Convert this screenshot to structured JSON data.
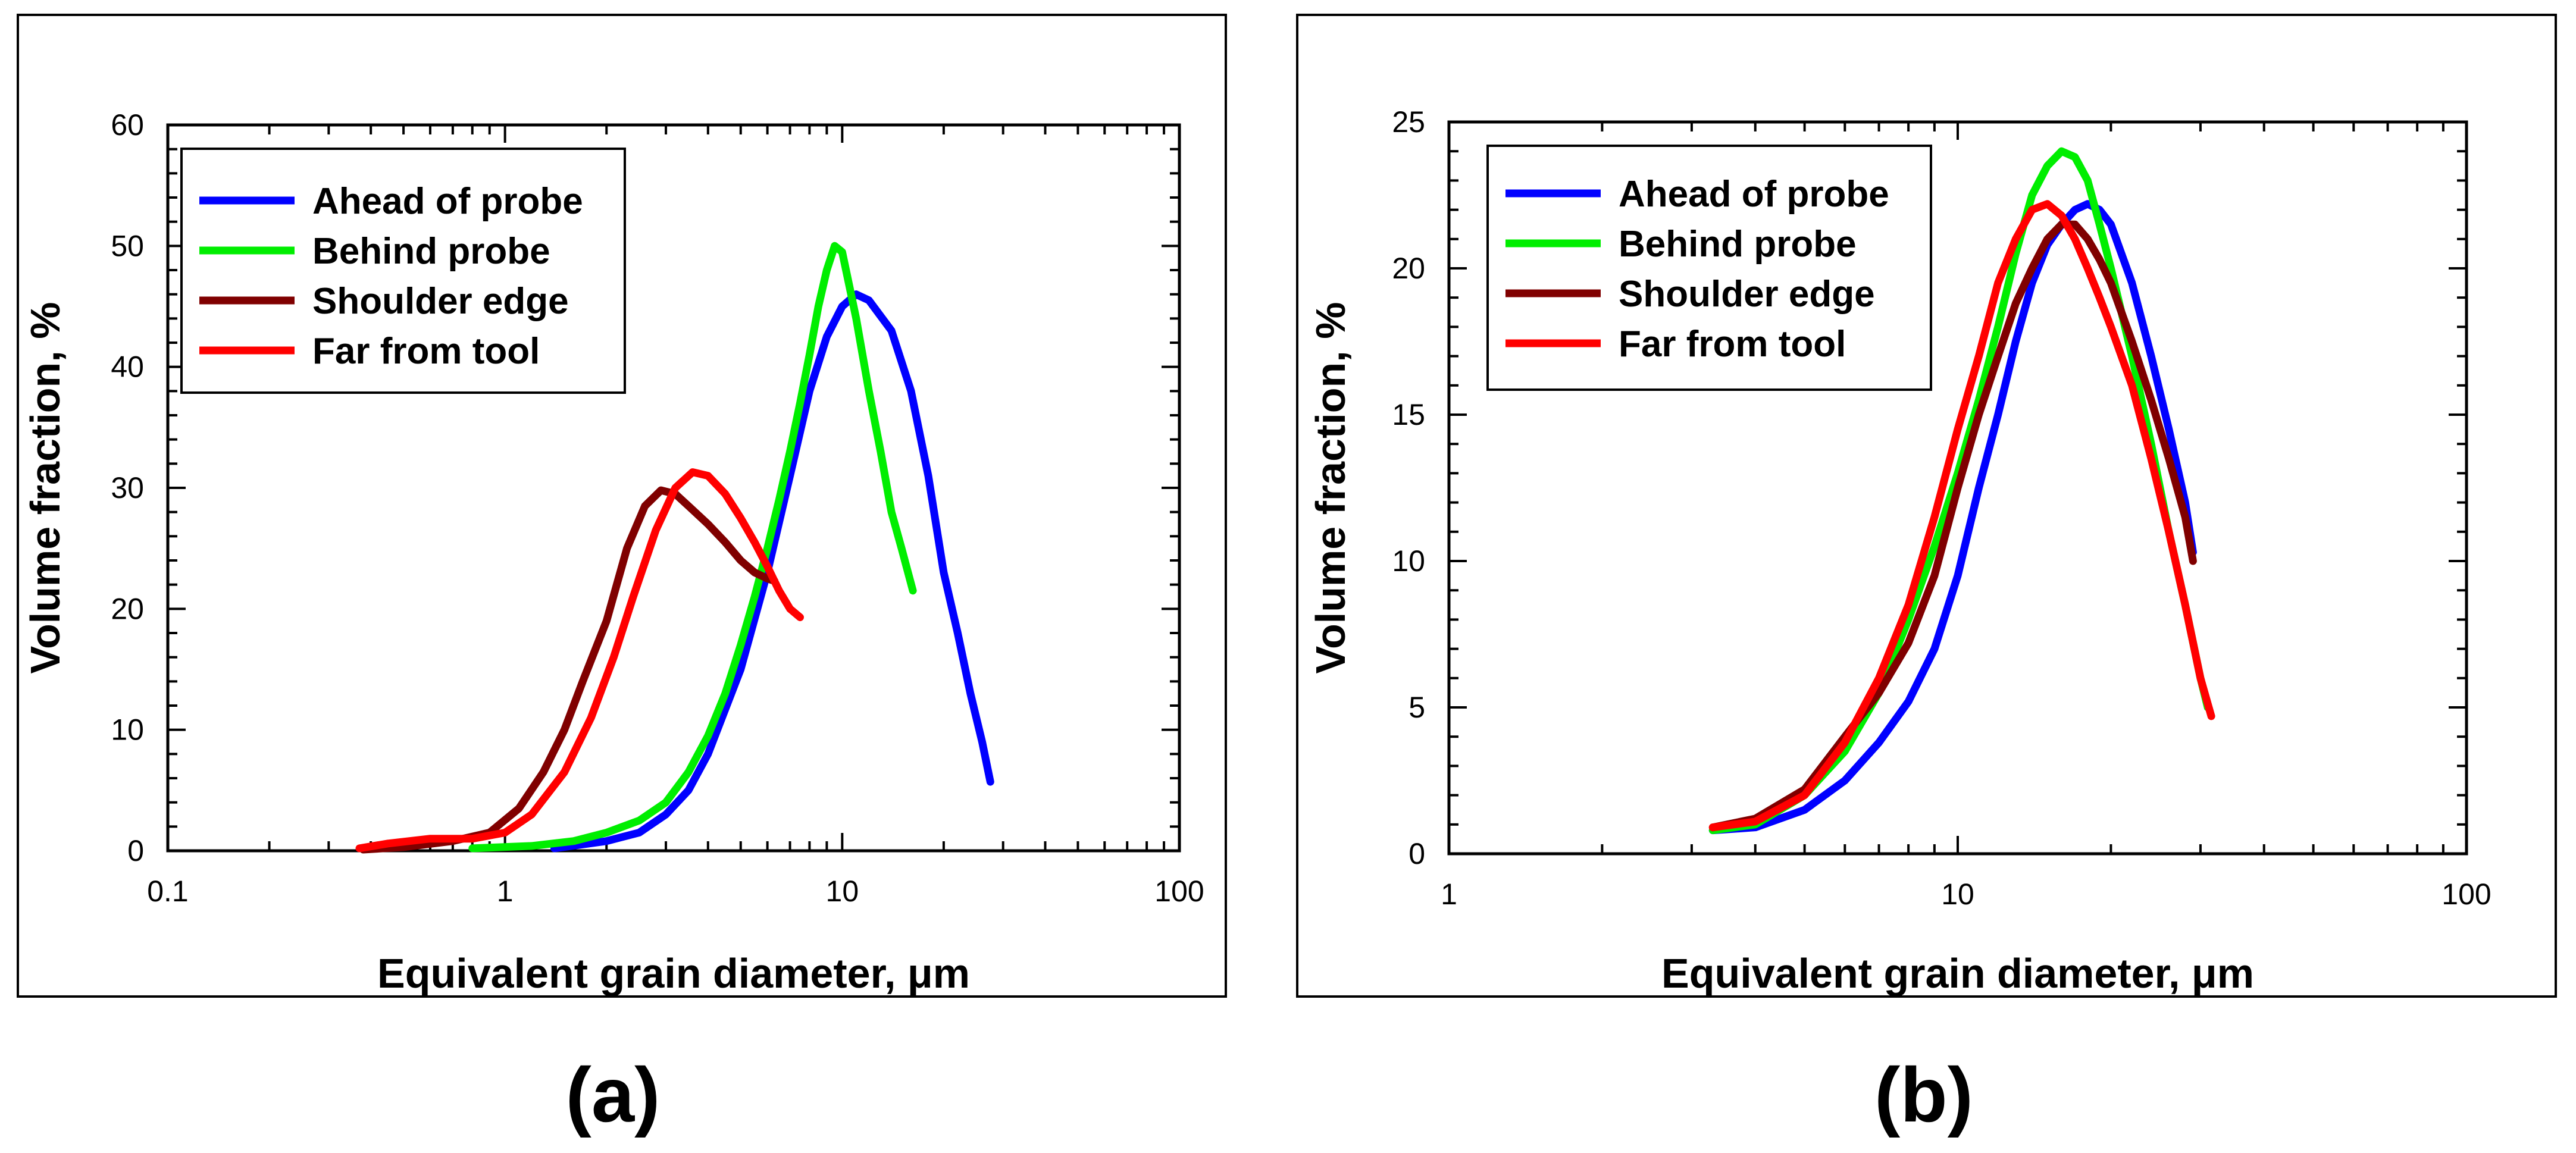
{
  "chart_data": [
    {
      "type": "line",
      "panel_label": "(a)",
      "xscale": "log",
      "xlim": [
        0.1,
        100
      ],
      "ylim": [
        0,
        60
      ],
      "xticks": [
        0.1,
        1,
        10,
        100
      ],
      "xtick_labels": [
        "0.1",
        "1",
        "10",
        "100"
      ],
      "yticks": [
        0,
        10,
        20,
        30,
        40,
        50,
        60
      ],
      "ytick_labels": [
        "0",
        "10",
        "20",
        "30",
        "40",
        "50",
        "60"
      ],
      "xlabel": "Equivalent grain diameter, μm",
      "ylabel": "Volume fraction, %",
      "legend_position": "top-left",
      "series": [
        {
          "name": "Ahead of probe",
          "color": "#0000ff",
          "x": [
            1.4,
            2.0,
            2.5,
            3.0,
            3.5,
            4.0,
            5.0,
            6.0,
            7.0,
            8.0,
            9.0,
            10.0,
            11.0,
            12.0,
            14.0,
            16.0,
            18.0,
            20.0,
            22.0,
            24.0,
            26.0,
            27.5
          ],
          "y": [
            0.2,
            0.8,
            1.5,
            3.0,
            5.0,
            8.0,
            15.0,
            23.0,
            31.0,
            38.0,
            42.5,
            45.0,
            46.0,
            45.5,
            43.0,
            38.0,
            31.0,
            23.0,
            18.0,
            13.0,
            9.0,
            5.7
          ]
        },
        {
          "name": "Behind probe",
          "color": "#00ee00",
          "x": [
            0.8,
            1.2,
            1.6,
            2.0,
            2.5,
            3.0,
            3.5,
            4.0,
            4.5,
            5.0,
            5.5,
            6.0,
            6.5,
            7.0,
            7.5,
            8.0,
            8.5,
            9.0,
            9.5,
            10.0,
            11.0,
            12.0,
            13.0,
            14.0,
            15.0,
            16.2
          ],
          "y": [
            0.2,
            0.4,
            0.8,
            1.5,
            2.5,
            4.0,
            6.5,
            9.5,
            13.0,
            17.0,
            21.0,
            25.0,
            29.0,
            33.0,
            37.0,
            41.0,
            45.0,
            48.0,
            50.0,
            49.5,
            44.0,
            38.0,
            33.0,
            28.0,
            25.0,
            21.5
          ]
        },
        {
          "name": "Shoulder edge",
          "color": "#800000",
          "x": [
            0.38,
            0.5,
            0.7,
            0.9,
            1.1,
            1.3,
            1.5,
            1.7,
            2.0,
            2.3,
            2.6,
            2.9,
            3.2,
            3.5,
            4.0,
            4.5,
            5.0,
            5.5,
            6.0,
            6.3
          ],
          "y": [
            0.1,
            0.3,
            0.8,
            1.5,
            3.5,
            6.5,
            10.0,
            14.0,
            19.0,
            25.0,
            28.5,
            29.8,
            29.5,
            28.5,
            27.0,
            25.5,
            24.0,
            23.0,
            22.5,
            22.3
          ]
        },
        {
          "name": "Far from tool",
          "color": "#ff0000",
          "x": [
            0.37,
            0.45,
            0.6,
            0.8,
            1.0,
            1.2,
            1.5,
            1.8,
            2.1,
            2.4,
            2.8,
            3.2,
            3.6,
            4.0,
            4.5,
            5.0,
            5.5,
            6.0,
            6.5,
            7.0,
            7.5
          ],
          "y": [
            0.2,
            0.6,
            1.0,
            1.0,
            1.5,
            3.0,
            6.5,
            11.0,
            16.0,
            21.0,
            26.5,
            30.0,
            31.3,
            31.0,
            29.5,
            27.5,
            25.5,
            23.5,
            21.5,
            20.0,
            19.3
          ]
        }
      ]
    },
    {
      "type": "line",
      "panel_label": "(b)",
      "xscale": "log",
      "xlim": [
        1,
        100
      ],
      "ylim": [
        0,
        25
      ],
      "xticks": [
        1,
        10,
        100
      ],
      "xtick_labels": [
        "1",
        "10",
        "100"
      ],
      "yticks": [
        0,
        5,
        10,
        15,
        20,
        25
      ],
      "ytick_labels": [
        "0",
        "5",
        "10",
        "15",
        "20",
        "25"
      ],
      "xlabel": "Equivalent grain diameter, μm",
      "ylabel": "Volume fraction, %",
      "legend_position": "top-left",
      "series": [
        {
          "name": "Ahead of probe",
          "color": "#0000ff",
          "x": [
            3.3,
            4.0,
            5.0,
            6.0,
            7.0,
            8.0,
            9.0,
            10.0,
            11.0,
            12.0,
            13.0,
            14.0,
            15.0,
            16.0,
            17.0,
            18.0,
            19.0,
            20.0,
            22.0,
            24.0,
            26.0,
            28.0,
            29.0
          ],
          "y": [
            0.8,
            0.9,
            1.5,
            2.5,
            3.8,
            5.2,
            7.0,
            9.5,
            12.5,
            15.0,
            17.5,
            19.5,
            20.8,
            21.5,
            22.0,
            22.2,
            22.0,
            21.5,
            19.5,
            17.0,
            14.5,
            12.0,
            10.3
          ]
        },
        {
          "name": "Behind probe",
          "color": "#00ee00",
          "x": [
            3.3,
            4.0,
            5.0,
            6.0,
            7.0,
            8.0,
            9.0,
            10.0,
            11.0,
            12.0,
            13.0,
            14.0,
            15.0,
            16.0,
            17.0,
            18.0,
            19.0,
            20.0,
            22.0,
            24.0,
            26.0,
            28.0,
            30.0,
            31.0
          ],
          "y": [
            0.8,
            1.0,
            2.0,
            3.5,
            5.5,
            8.0,
            10.5,
            13.0,
            15.5,
            18.0,
            20.5,
            22.5,
            23.5,
            24.0,
            23.8,
            23.0,
            21.5,
            20.0,
            17.0,
            14.0,
            11.0,
            8.5,
            6.0,
            5.0
          ]
        },
        {
          "name": "Shoulder edge",
          "color": "#800000",
          "x": [
            3.3,
            4.0,
            5.0,
            6.0,
            7.0,
            8.0,
            9.0,
            10.0,
            11.0,
            12.0,
            13.0,
            14.0,
            15.0,
            16.0,
            17.0,
            18.0,
            19.0,
            20.0,
            22.0,
            24.0,
            26.0,
            28.0,
            29.0
          ],
          "y": [
            0.9,
            1.2,
            2.2,
            4.0,
            5.5,
            7.2,
            9.5,
            12.5,
            15.0,
            17.0,
            18.8,
            20.0,
            21.0,
            21.5,
            21.5,
            21.0,
            20.3,
            19.5,
            17.5,
            15.5,
            13.5,
            11.5,
            10.0
          ]
        },
        {
          "name": "Far from tool",
          "color": "#ff0000",
          "x": [
            3.3,
            4.0,
            5.0,
            6.0,
            7.0,
            8.0,
            9.0,
            10.0,
            11.0,
            12.0,
            13.0,
            14.0,
            15.0,
            16.0,
            17.0,
            18.0,
            19.0,
            20.0,
            22.0,
            24.0,
            26.0,
            28.0,
            30.0,
            31.5
          ],
          "y": [
            0.9,
            1.1,
            2.0,
            3.8,
            6.0,
            8.5,
            11.5,
            14.5,
            17.0,
            19.5,
            21.0,
            22.0,
            22.2,
            21.8,
            21.0,
            20.0,
            19.0,
            18.0,
            16.0,
            13.5,
            11.0,
            8.5,
            6.0,
            4.7
          ]
        }
      ]
    }
  ]
}
